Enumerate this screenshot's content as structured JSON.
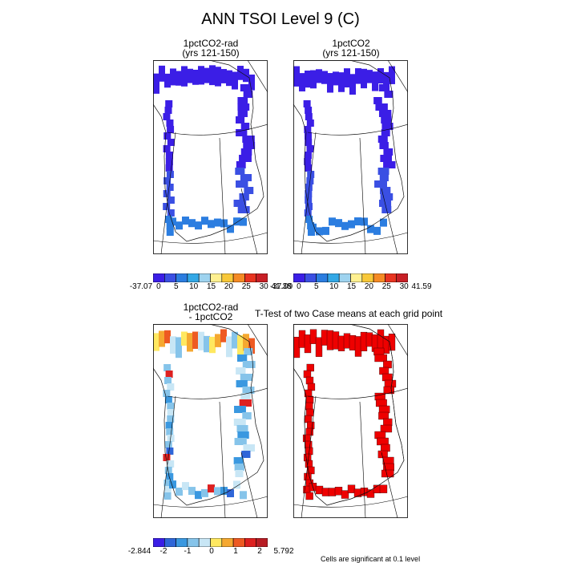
{
  "figure": {
    "title": "ANN TSOI Level 9 (C)",
    "footnote": "Cells are significant at 0.1 level"
  },
  "panels": [
    {
      "id": "case1",
      "title": "1pctCO2-rad",
      "subtitle": "(yrs 121-150)",
      "palette": "full",
      "colorbar": {
        "labels": [
          "-37.07",
          "0",
          "5",
          "10",
          "15",
          "20",
          "25",
          "30",
          "41.38"
        ]
      }
    },
    {
      "id": "case2",
      "title": "1pctCO2",
      "subtitle": "(yrs 121-150)",
      "palette": "full",
      "colorbar": {
        "labels": [
          "-37.09",
          "0",
          "5",
          "10",
          "15",
          "20",
          "25",
          "30",
          "41.59"
        ]
      }
    },
    {
      "id": "diff",
      "title": "1pctCO2-rad",
      "subtitle": "- 1pctCO2",
      "palette": "diff",
      "colorbar": {
        "labels": [
          "-2.844",
          "-2",
          "-1",
          "0",
          "1",
          "2",
          "5.792"
        ]
      }
    },
    {
      "id": "ttest",
      "title": "T-Test of two Case means at each grid point",
      "subtitle": ""
    }
  ],
  "colors": {
    "full_palette": [
      "#3b1ee6",
      "#3a4fe3",
      "#2b7de0",
      "#33a8e6",
      "#9ed3ef",
      "#fff090",
      "#f8c838",
      "#f58a24",
      "#e83420",
      "#c81f26"
    ],
    "diff_palette": [
      "#3b1ee6",
      "#2f66d8",
      "#3a98e0",
      "#86c4ea",
      "#c8e6f5",
      "#ffe860",
      "#f5a830",
      "#ee5a22",
      "#dd2020",
      "#b71c24"
    ],
    "significant": "#ee0000"
  }
}
